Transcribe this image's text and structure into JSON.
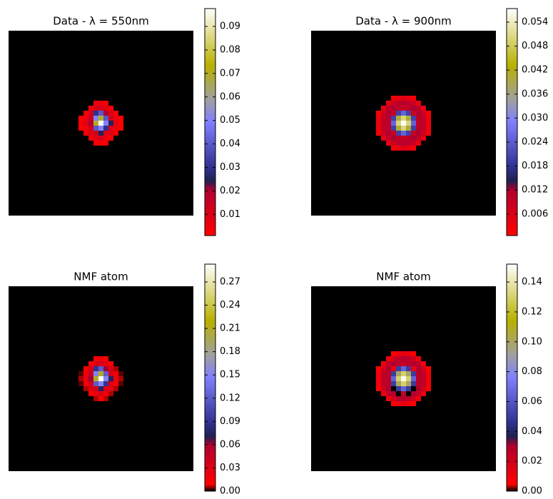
{
  "chart_data": [
    {
      "type": "heatmap",
      "title": "Data - λ = 550nm",
      "zlim": [
        0.001,
        0.0976
      ],
      "zticks": [
        0.01,
        0.02,
        0.03,
        0.04,
        0.05,
        0.06,
        0.07,
        0.08,
        0.09
      ],
      "under_color": "#000000",
      "colormap": [
        [
          0,
          "#ff0000"
        ],
        [
          0.2,
          "#b00030"
        ],
        [
          0.24,
          "#202050"
        ],
        [
          0.3,
          "#303090"
        ],
        [
          0.5,
          "#8080ff"
        ],
        [
          0.6,
          "#a0a0a0"
        ],
        [
          0.75,
          "#b8b000"
        ],
        [
          1,
          "#ffffff"
        ]
      ],
      "values": [
        [
          0,
          0,
          0,
          0.005,
          0.006,
          0.004,
          0,
          0,
          0
        ],
        [
          0,
          0,
          0.004,
          0.01,
          0.012,
          0.008,
          0.003,
          0,
          0
        ],
        [
          0,
          0.003,
          0.012,
          0.03,
          0.04,
          0.02,
          0.01,
          0.002,
          0
        ],
        [
          0.001,
          0.006,
          0.015,
          0.05,
          0.07,
          0.04,
          0.012,
          0.005,
          0.001
        ],
        [
          0.002,
          0.008,
          0.02,
          0.07,
          0.097,
          0.05,
          0.025,
          0.006,
          0.002
        ],
        [
          0.001,
          0.005,
          0.012,
          0.04,
          0.05,
          0.03,
          0.01,
          0.004,
          0.001
        ],
        [
          0,
          0.002,
          0.01,
          0.012,
          0.025,
          0.01,
          0.008,
          0.002,
          0
        ],
        [
          0,
          0,
          0.003,
          0.008,
          0.01,
          0.006,
          0.002,
          0,
          0
        ],
        [
          0,
          0,
          0,
          0.002,
          0.003,
          0.002,
          0,
          0,
          0
        ]
      ]
    },
    {
      "type": "heatmap",
      "title": "Data - λ = 900nm",
      "zlim": [
        0.0006,
        0.0574
      ],
      "zticks": [
        0.006,
        0.012,
        0.018,
        0.024,
        {
          "value": 0.03,
          "label": "0.030"
        },
        0.036,
        0.042,
        0.048,
        0.054
      ],
      "under_color": "#000000",
      "colormap": [
        [
          0,
          "#ff0000"
        ],
        [
          0.2,
          "#b00030"
        ],
        [
          0.24,
          "#202050"
        ],
        [
          0.3,
          "#303090"
        ],
        [
          0.5,
          "#8080ff"
        ],
        [
          0.6,
          "#a0a0a0"
        ],
        [
          0.75,
          "#b8b000"
        ],
        [
          1,
          "#ffffff"
        ]
      ],
      "values": [
        [
          0,
          0,
          0,
          0.002,
          0.004,
          0.005,
          0.004,
          0.002,
          0,
          0,
          0
        ],
        [
          0,
          0,
          0.004,
          0.008,
          0.01,
          0.011,
          0.01,
          0.008,
          0.004,
          0,
          0
        ],
        [
          0,
          0.004,
          0.01,
          0.012,
          0.01,
          0.009,
          0.01,
          0.012,
          0.01,
          0.004,
          0
        ],
        [
          0.002,
          0.008,
          0.012,
          0.008,
          0.02,
          0.025,
          0.02,
          0.008,
          0.012,
          0.008,
          0.002
        ],
        [
          0.003,
          0.01,
          0.01,
          0.02,
          0.04,
          0.05,
          0.04,
          0.02,
          0.01,
          0.01,
          0.003
        ],
        [
          0.003,
          0.01,
          0.01,
          0.025,
          0.05,
          0.057,
          0.05,
          0.025,
          0.01,
          0.01,
          0.003
        ],
        [
          0.003,
          0.01,
          0.01,
          0.02,
          0.04,
          0.05,
          0.04,
          0.02,
          0.01,
          0.01,
          0.003
        ],
        [
          0.002,
          0.008,
          0.012,
          0.008,
          0.02,
          0.025,
          0.02,
          0.008,
          0.012,
          0.008,
          0.002
        ],
        [
          0,
          0.004,
          0.01,
          0.012,
          0.01,
          0.009,
          0.01,
          0.012,
          0.01,
          0.004,
          0
        ],
        [
          0,
          0,
          0.004,
          0.008,
          0.01,
          0.011,
          0.01,
          0.008,
          0.004,
          0,
          0
        ],
        [
          0,
          0,
          0,
          0.002,
          0.004,
          0.005,
          0.004,
          0.002,
          0,
          0,
          0
        ]
      ]
    },
    {
      "type": "heatmap",
      "title": "NMF atom",
      "zlim": [
        0,
        0.293
      ],
      "zticks": [
        {
          "value": 0,
          "label": "0.00"
        },
        0.03,
        0.06,
        0.09,
        0.12,
        0.15,
        0.18,
        0.21,
        0.24,
        0.27
      ],
      "colormap": [
        [
          0,
          "#000000"
        ],
        [
          0.03,
          "#ff0000"
        ],
        [
          0.2,
          "#b00030"
        ],
        [
          0.24,
          "#202050"
        ],
        [
          0.3,
          "#303090"
        ],
        [
          0.5,
          "#8080ff"
        ],
        [
          0.6,
          "#a0a0a0"
        ],
        [
          0.75,
          "#b8b000"
        ],
        [
          1,
          "#ffffff"
        ]
      ],
      "values": [
        [
          0,
          0,
          0,
          0.015,
          0.018,
          0.012,
          0,
          0,
          0
        ],
        [
          0,
          0,
          0.012,
          0.03,
          0.036,
          0.024,
          0.009,
          0,
          0
        ],
        [
          0,
          0.009,
          0.036,
          0.09,
          0.12,
          0.06,
          0.03,
          0.006,
          0
        ],
        [
          0.003,
          0.018,
          0.045,
          0.15,
          0.21,
          0.12,
          0.036,
          0.015,
          0.003
        ],
        [
          0.006,
          0.024,
          0.06,
          0.21,
          0.29,
          0.15,
          0.075,
          0.018,
          0.006
        ],
        [
          0.003,
          0.015,
          0.036,
          0.12,
          0.15,
          0.09,
          0.03,
          0.012,
          0.003
        ],
        [
          0,
          0.006,
          0.03,
          0.036,
          0.075,
          0.03,
          0.024,
          0.006,
          0
        ],
        [
          0,
          0,
          0.009,
          0.024,
          0.03,
          0.018,
          0.006,
          0,
          0
        ],
        [
          0,
          0,
          0,
          0.006,
          0.009,
          0.006,
          0,
          0,
          0
        ]
      ]
    },
    {
      "type": "heatmap",
      "title": "NMF atom",
      "zlim": [
        0,
        0.152
      ],
      "zticks": [
        {
          "value": 0,
          "label": "0.00"
        },
        0.02,
        0.04,
        0.06,
        0.08,
        {
          "value": 0.1,
          "label": "0.10"
        },
        0.12,
        0.14
      ],
      "colormap": [
        [
          0,
          "#000000"
        ],
        [
          0.03,
          "#ff0000"
        ],
        [
          0.2,
          "#b00030"
        ],
        [
          0.24,
          "#202050"
        ],
        [
          0.3,
          "#303090"
        ],
        [
          0.5,
          "#8080ff"
        ],
        [
          0.6,
          "#a0a0a0"
        ],
        [
          0.75,
          "#b8b000"
        ],
        [
          1,
          "#ffffff"
        ]
      ],
      "values": [
        [
          0,
          0,
          0,
          0.005,
          0.01,
          0.013,
          0.01,
          0.005,
          0,
          0,
          0
        ],
        [
          0,
          0,
          0.01,
          0.02,
          0.026,
          0.028,
          0.026,
          0.02,
          0.01,
          0,
          0
        ],
        [
          0,
          0.01,
          0.026,
          0.03,
          0.026,
          0.024,
          0.026,
          0.03,
          0.026,
          0.01,
          0
        ],
        [
          0.005,
          0.02,
          0.03,
          0.01,
          0.05,
          0.065,
          0.05,
          0.01,
          0.03,
          0.02,
          0.005
        ],
        [
          0.008,
          0.026,
          0.026,
          0.05,
          0.1,
          0.13,
          0.1,
          0.05,
          0.026,
          0.026,
          0.008
        ],
        [
          0.008,
          0.026,
          0.026,
          0.065,
          0.13,
          0.15,
          0.13,
          0.065,
          0.026,
          0.026,
          0.008
        ],
        [
          0.008,
          0.026,
          0.026,
          0.05,
          0.1,
          0.13,
          0.1,
          0.05,
          0.026,
          0.026,
          0.008
        ],
        [
          0.005,
          0.02,
          0.03,
          0,
          0.05,
          0.065,
          0.05,
          0,
          0.03,
          0.02,
          0.005
        ],
        [
          0,
          0.01,
          0.026,
          0.03,
          0,
          0.024,
          0,
          0.03,
          0.026,
          0.01,
          0
        ],
        [
          0,
          0,
          0.01,
          0.02,
          0.026,
          0.028,
          0.026,
          0.02,
          0.01,
          0,
          0
        ],
        [
          0,
          0,
          0,
          0.005,
          0.01,
          0.013,
          0.01,
          0.005,
          0,
          0,
          0
        ]
      ]
    }
  ]
}
